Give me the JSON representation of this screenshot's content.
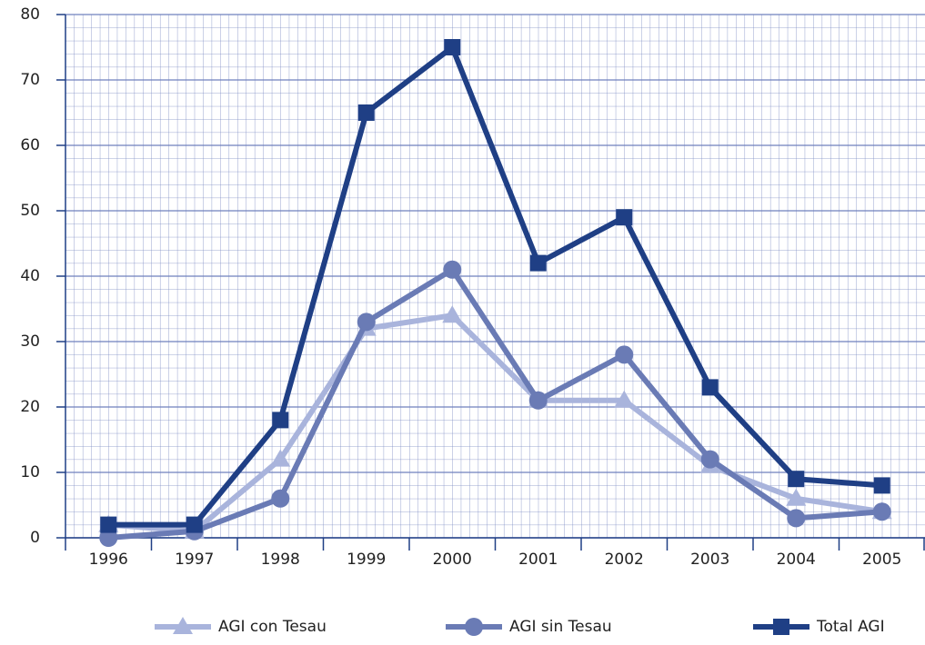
{
  "chart_data": {
    "type": "line",
    "categories": [
      "1996",
      "1997",
      "1998",
      "1999",
      "2000",
      "2001",
      "2002",
      "2003",
      "2004",
      "2005"
    ],
    "series": [
      {
        "name": "AGI con Tesau",
        "color": "#a9b4dc",
        "marker": "triangle",
        "values": [
          2,
          1,
          12,
          32,
          34,
          21,
          21,
          11,
          6,
          4
        ]
      },
      {
        "name": "AGI sin Tesau",
        "color": "#6a7bb5",
        "marker": "circle",
        "values": [
          0,
          1,
          6,
          33,
          41,
          21,
          28,
          12,
          3,
          4
        ]
      },
      {
        "name": "Total AGI",
        "color": "#1f3f85",
        "marker": "square",
        "values": [
          2,
          2,
          18,
          65,
          75,
          42,
          49,
          23,
          9,
          8
        ]
      }
    ],
    "ylim": [
      0,
      80
    ],
    "yticks": [
      0,
      10,
      20,
      30,
      40,
      50,
      60,
      70,
      80
    ],
    "grid": true,
    "legend": "bottom"
  }
}
